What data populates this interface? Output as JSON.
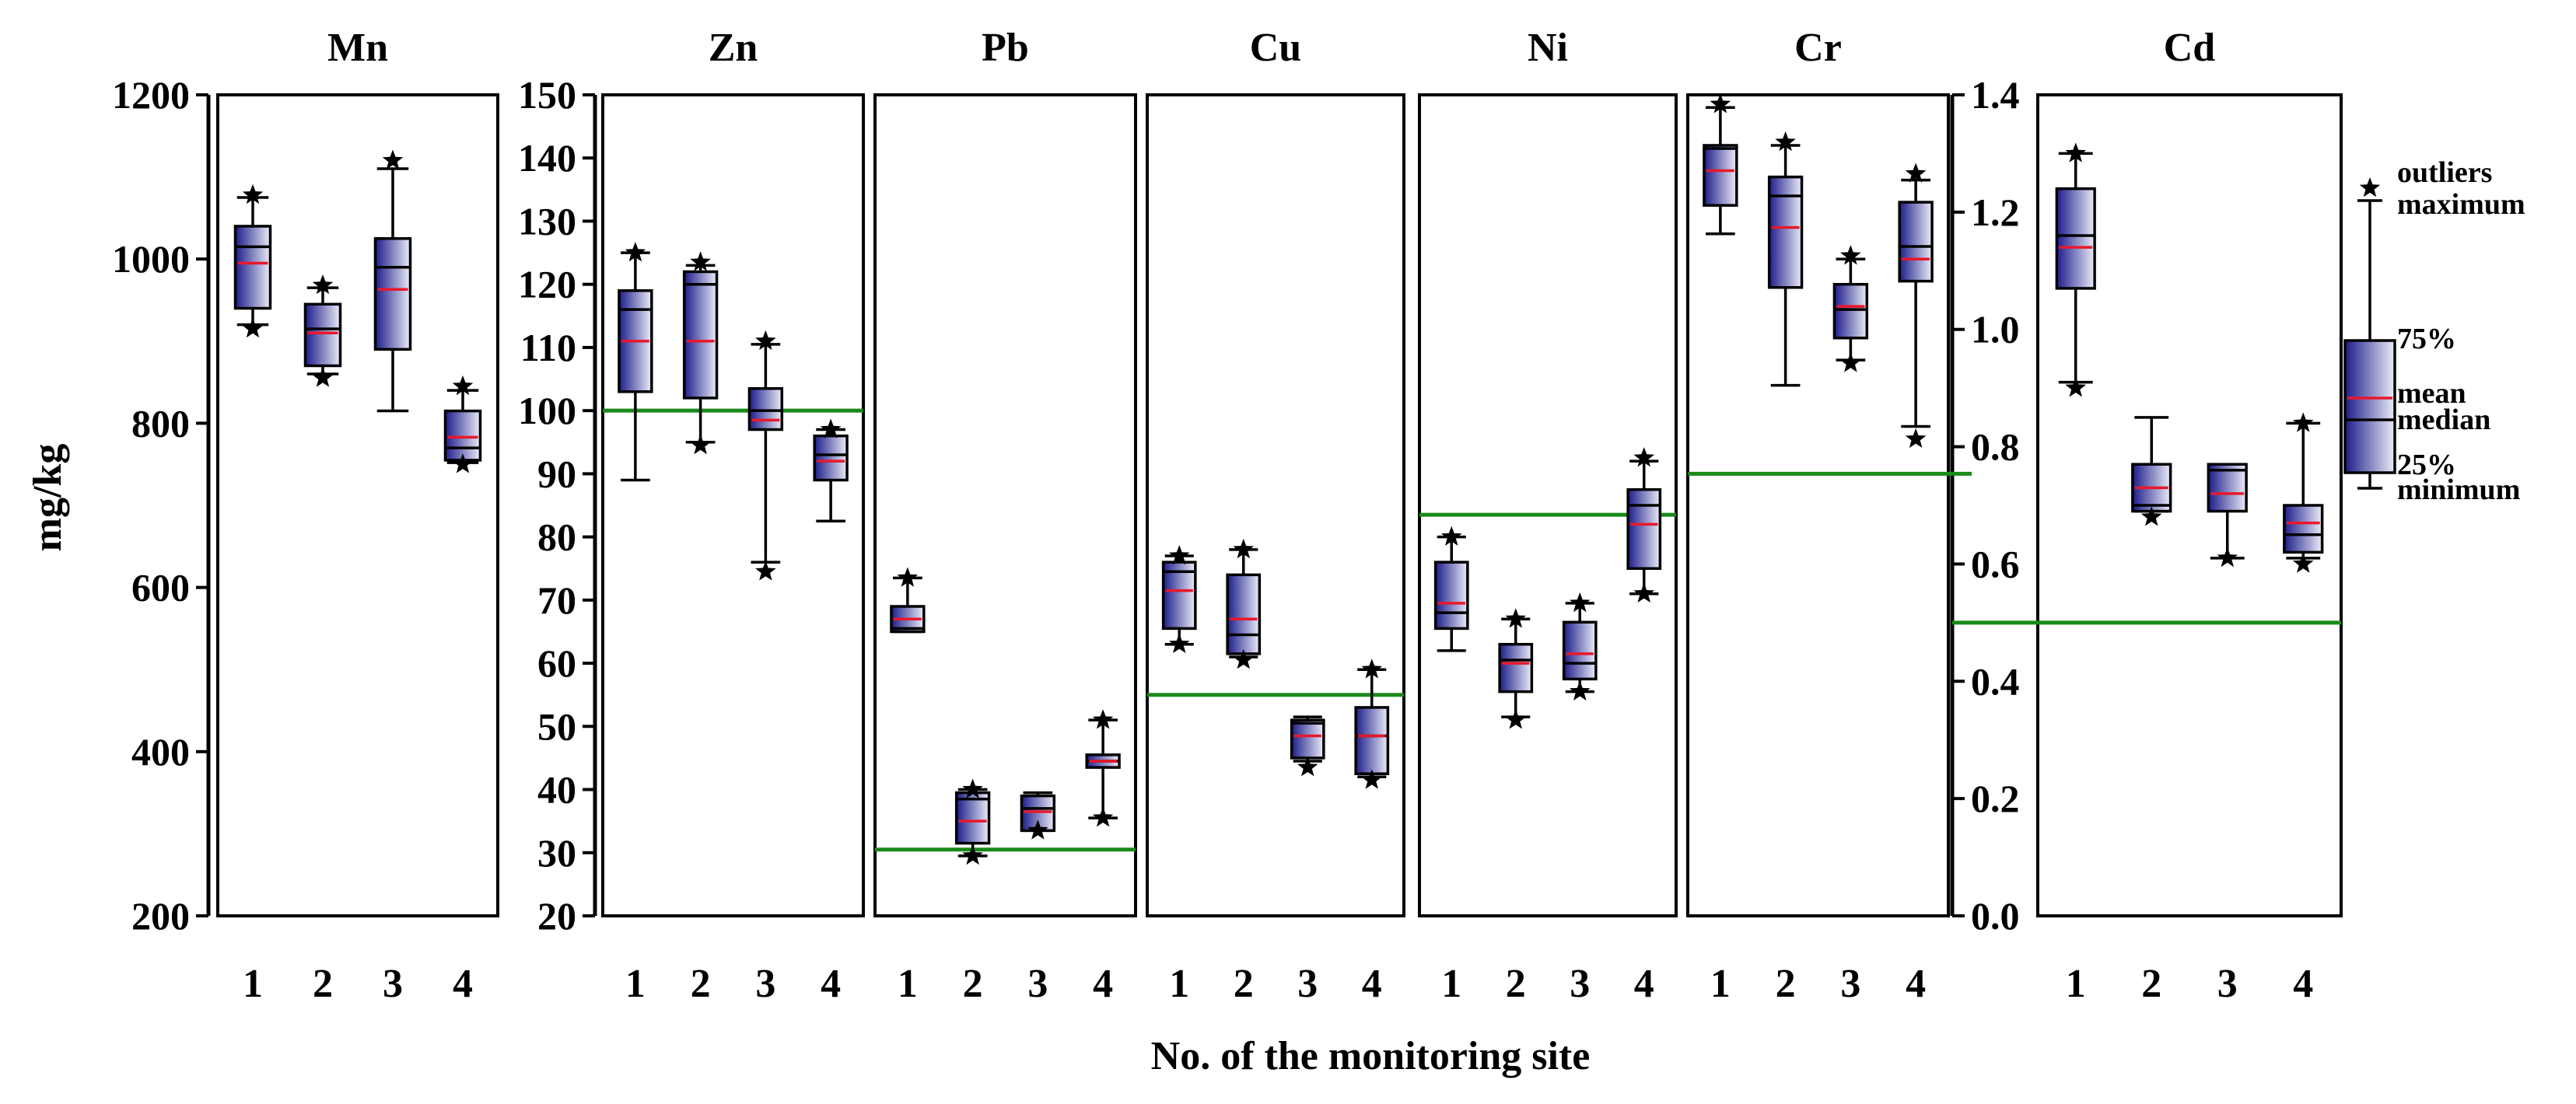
{
  "chart_data": {
    "type": "box",
    "title": "",
    "xlabel": "No. of the monitoring site",
    "ylabel": "mg/kg",
    "categories": [
      "1",
      "2",
      "3",
      "4"
    ],
    "colors": {
      "box_dark": "#1c1c8a",
      "box_light": "#e8e8f6",
      "mean": "#e8182a",
      "threshold": "#1a8a1a"
    },
    "axes": [
      {
        "name": "left",
        "ylim": [
          200,
          1200
        ],
        "ticks": [
          "200",
          "400",
          "600",
          "800",
          "1000",
          "1200"
        ]
      },
      {
        "name": "mid",
        "ylim": [
          20,
          150
        ],
        "ticks": [
          "20",
          "30",
          "40",
          "50",
          "60",
          "70",
          "80",
          "90",
          "100",
          "110",
          "120",
          "130",
          "140",
          "150"
        ]
      },
      {
        "name": "right",
        "ylim": [
          0,
          1.4
        ],
        "ticks": [
          "0.0",
          "0.2",
          "0.4",
          "0.6",
          "0.8",
          "1.0",
          "1.2",
          "1.4"
        ]
      }
    ],
    "panels": [
      {
        "name": "Mn",
        "axis": "left",
        "threshold": null,
        "boxes": [
          {
            "site": "1",
            "min": 920,
            "q1": 940,
            "median": 1015,
            "mean": 995,
            "q3": 1040,
            "max": 1075,
            "outliers": [
              1078,
              915
            ]
          },
          {
            "site": "2",
            "min": 860,
            "q1": 870,
            "median": 915,
            "mean": 910,
            "q3": 945,
            "max": 965,
            "outliers": [
              968,
              855
            ]
          },
          {
            "site": "3",
            "min": 815,
            "q1": 890,
            "median": 990,
            "mean": 963,
            "q3": 1025,
            "max": 1110,
            "outliers": [
              1120
            ]
          },
          {
            "site": "4",
            "min": 752,
            "q1": 755,
            "median": 770,
            "mean": 783,
            "q3": 815,
            "max": 840,
            "outliers": [
              845,
              750
            ]
          }
        ]
      },
      {
        "name": "Zn",
        "axis": "mid",
        "threshold": 100,
        "boxes": [
          {
            "site": "1",
            "min": 89,
            "q1": 103,
            "median": 116,
            "mean": 111,
            "q3": 119,
            "max": 125,
            "outliers": [
              125
            ]
          },
          {
            "site": "2",
            "min": 95,
            "q1": 102,
            "median": 120,
            "mean": 111,
            "q3": 122,
            "max": 123,
            "outliers": [
              123.5,
              94.5
            ]
          },
          {
            "site": "3",
            "min": 76,
            "q1": 97,
            "median": 100,
            "mean": 98.5,
            "q3": 103.5,
            "max": 110.5,
            "outliers": [
              111,
              74.5
            ]
          },
          {
            "site": "4",
            "min": 82.5,
            "q1": 89,
            "median": 93,
            "mean": 92,
            "q3": 96,
            "max": 97,
            "outliers": [
              97
            ]
          }
        ]
      },
      {
        "name": "Pb",
        "axis": "mid",
        "threshold": 30.5,
        "boxes": [
          {
            "site": "1",
            "min": 65,
            "q1": 65,
            "median": 65.5,
            "mean": 67,
            "q3": 69,
            "max": 73.5,
            "outliers": [
              73.5
            ]
          },
          {
            "site": "2",
            "min": 29.5,
            "q1": 31.5,
            "median": 38.5,
            "mean": 35,
            "q3": 39.5,
            "max": 40,
            "outliers": [
              40,
              29.5
            ]
          },
          {
            "site": "3",
            "min": 33.5,
            "q1": 33.5,
            "median": 37,
            "mean": 36.5,
            "q3": 39,
            "max": 39.5,
            "outliers": [
              33.5
            ]
          },
          {
            "site": "4",
            "min": 35.5,
            "q1": 43.5,
            "median": 44.5,
            "mean": 44.5,
            "q3": 45.5,
            "max": 51,
            "outliers": [
              51,
              35.5
            ]
          }
        ]
      },
      {
        "name": "Cu",
        "axis": "mid",
        "threshold": 55,
        "boxes": [
          {
            "site": "1",
            "min": 63,
            "q1": 65.5,
            "median": 74.5,
            "mean": 71.5,
            "q3": 76,
            "max": 77,
            "outliers": [
              77,
              63
            ]
          },
          {
            "site": "2",
            "min": 61,
            "q1": 61.5,
            "median": 64.5,
            "mean": 67,
            "q3": 74,
            "max": 78,
            "outliers": [
              78,
              60.5
            ]
          },
          {
            "site": "3",
            "min": 44.5,
            "q1": 45,
            "median": 50.5,
            "mean": 48.5,
            "q3": 51,
            "max": 51.5,
            "outliers": [
              43.5
            ]
          },
          {
            "site": "4",
            "min": 42,
            "q1": 42.5,
            "median": 48.5,
            "mean": 48.5,
            "q3": 53,
            "max": 59,
            "outliers": [
              59,
              41.5
            ]
          }
        ]
      },
      {
        "name": "Ni",
        "axis": "mid",
        "threshold": 83.5,
        "boxes": [
          {
            "site": "1",
            "min": 62,
            "q1": 65.5,
            "median": 68,
            "mean": 69.5,
            "q3": 76,
            "max": 80,
            "outliers": [
              80
            ]
          },
          {
            "site": "2",
            "min": 51.5,
            "q1": 55.5,
            "median": 60.5,
            "mean": 60,
            "q3": 63,
            "max": 67,
            "outliers": [
              67,
              51
            ]
          },
          {
            "site": "3",
            "min": 55.5,
            "q1": 57.5,
            "median": 60,
            "mean": 61.5,
            "q3": 66.5,
            "max": 69.5,
            "outliers": [
              69.5,
              55.5
            ]
          },
          {
            "site": "4",
            "min": 71,
            "q1": 75,
            "median": 85,
            "mean": 82,
            "q3": 87.5,
            "max": 92,
            "outliers": [
              92.5,
              71
            ]
          }
        ]
      },
      {
        "name": "Cr",
        "axis": "mid",
        "threshold": 90,
        "boxes": [
          {
            "site": "1",
            "min": 128,
            "q1": 132.5,
            "median": 141.5,
            "mean": 138,
            "q3": 142,
            "max": 148,
            "outliers": [
              148.5
            ]
          },
          {
            "site": "2",
            "min": 104,
            "q1": 119.5,
            "median": 134,
            "mean": 129,
            "q3": 137,
            "max": 142,
            "outliers": [
              142.5
            ]
          },
          {
            "site": "3",
            "min": 108,
            "q1": 111.5,
            "median": 116,
            "mean": 116.5,
            "q3": 120,
            "max": 124,
            "outliers": [
              124.5,
              107.5
            ]
          },
          {
            "site": "4",
            "min": 97.5,
            "q1": 120.5,
            "median": 126,
            "mean": 124,
            "q3": 133,
            "max": 136.5,
            "outliers": [
              137.5,
              95.5
            ]
          }
        ]
      },
      {
        "name": "Cd",
        "axis": "right",
        "threshold": 0.5,
        "boxes": [
          {
            "site": "1",
            "min": 0.91,
            "q1": 1.07,
            "median": 1.16,
            "mean": 1.14,
            "q3": 1.24,
            "max": 1.3,
            "outliers": [
              1.3,
              0.9
            ]
          },
          {
            "site": "2",
            "min": 0.69,
            "q1": 0.69,
            "median": 0.7,
            "mean": 0.73,
            "q3": 0.77,
            "max": 0.85,
            "outliers": [
              0.68
            ]
          },
          {
            "site": "3",
            "min": 0.61,
            "q1": 0.69,
            "median": 0.76,
            "mean": 0.72,
            "q3": 0.77,
            "max": 0.77,
            "outliers": [
              0.61
            ]
          },
          {
            "site": "4",
            "min": 0.61,
            "q1": 0.62,
            "median": 0.65,
            "mean": 0.67,
            "q3": 0.7,
            "max": 0.84,
            "outliers": [
              0.84,
              0.6
            ]
          }
        ]
      }
    ],
    "legend": {
      "labels": [
        "outliers",
        "maximum",
        "75%",
        "mean",
        "median",
        "25%",
        "minimum"
      ],
      "placement": "right"
    }
  }
}
